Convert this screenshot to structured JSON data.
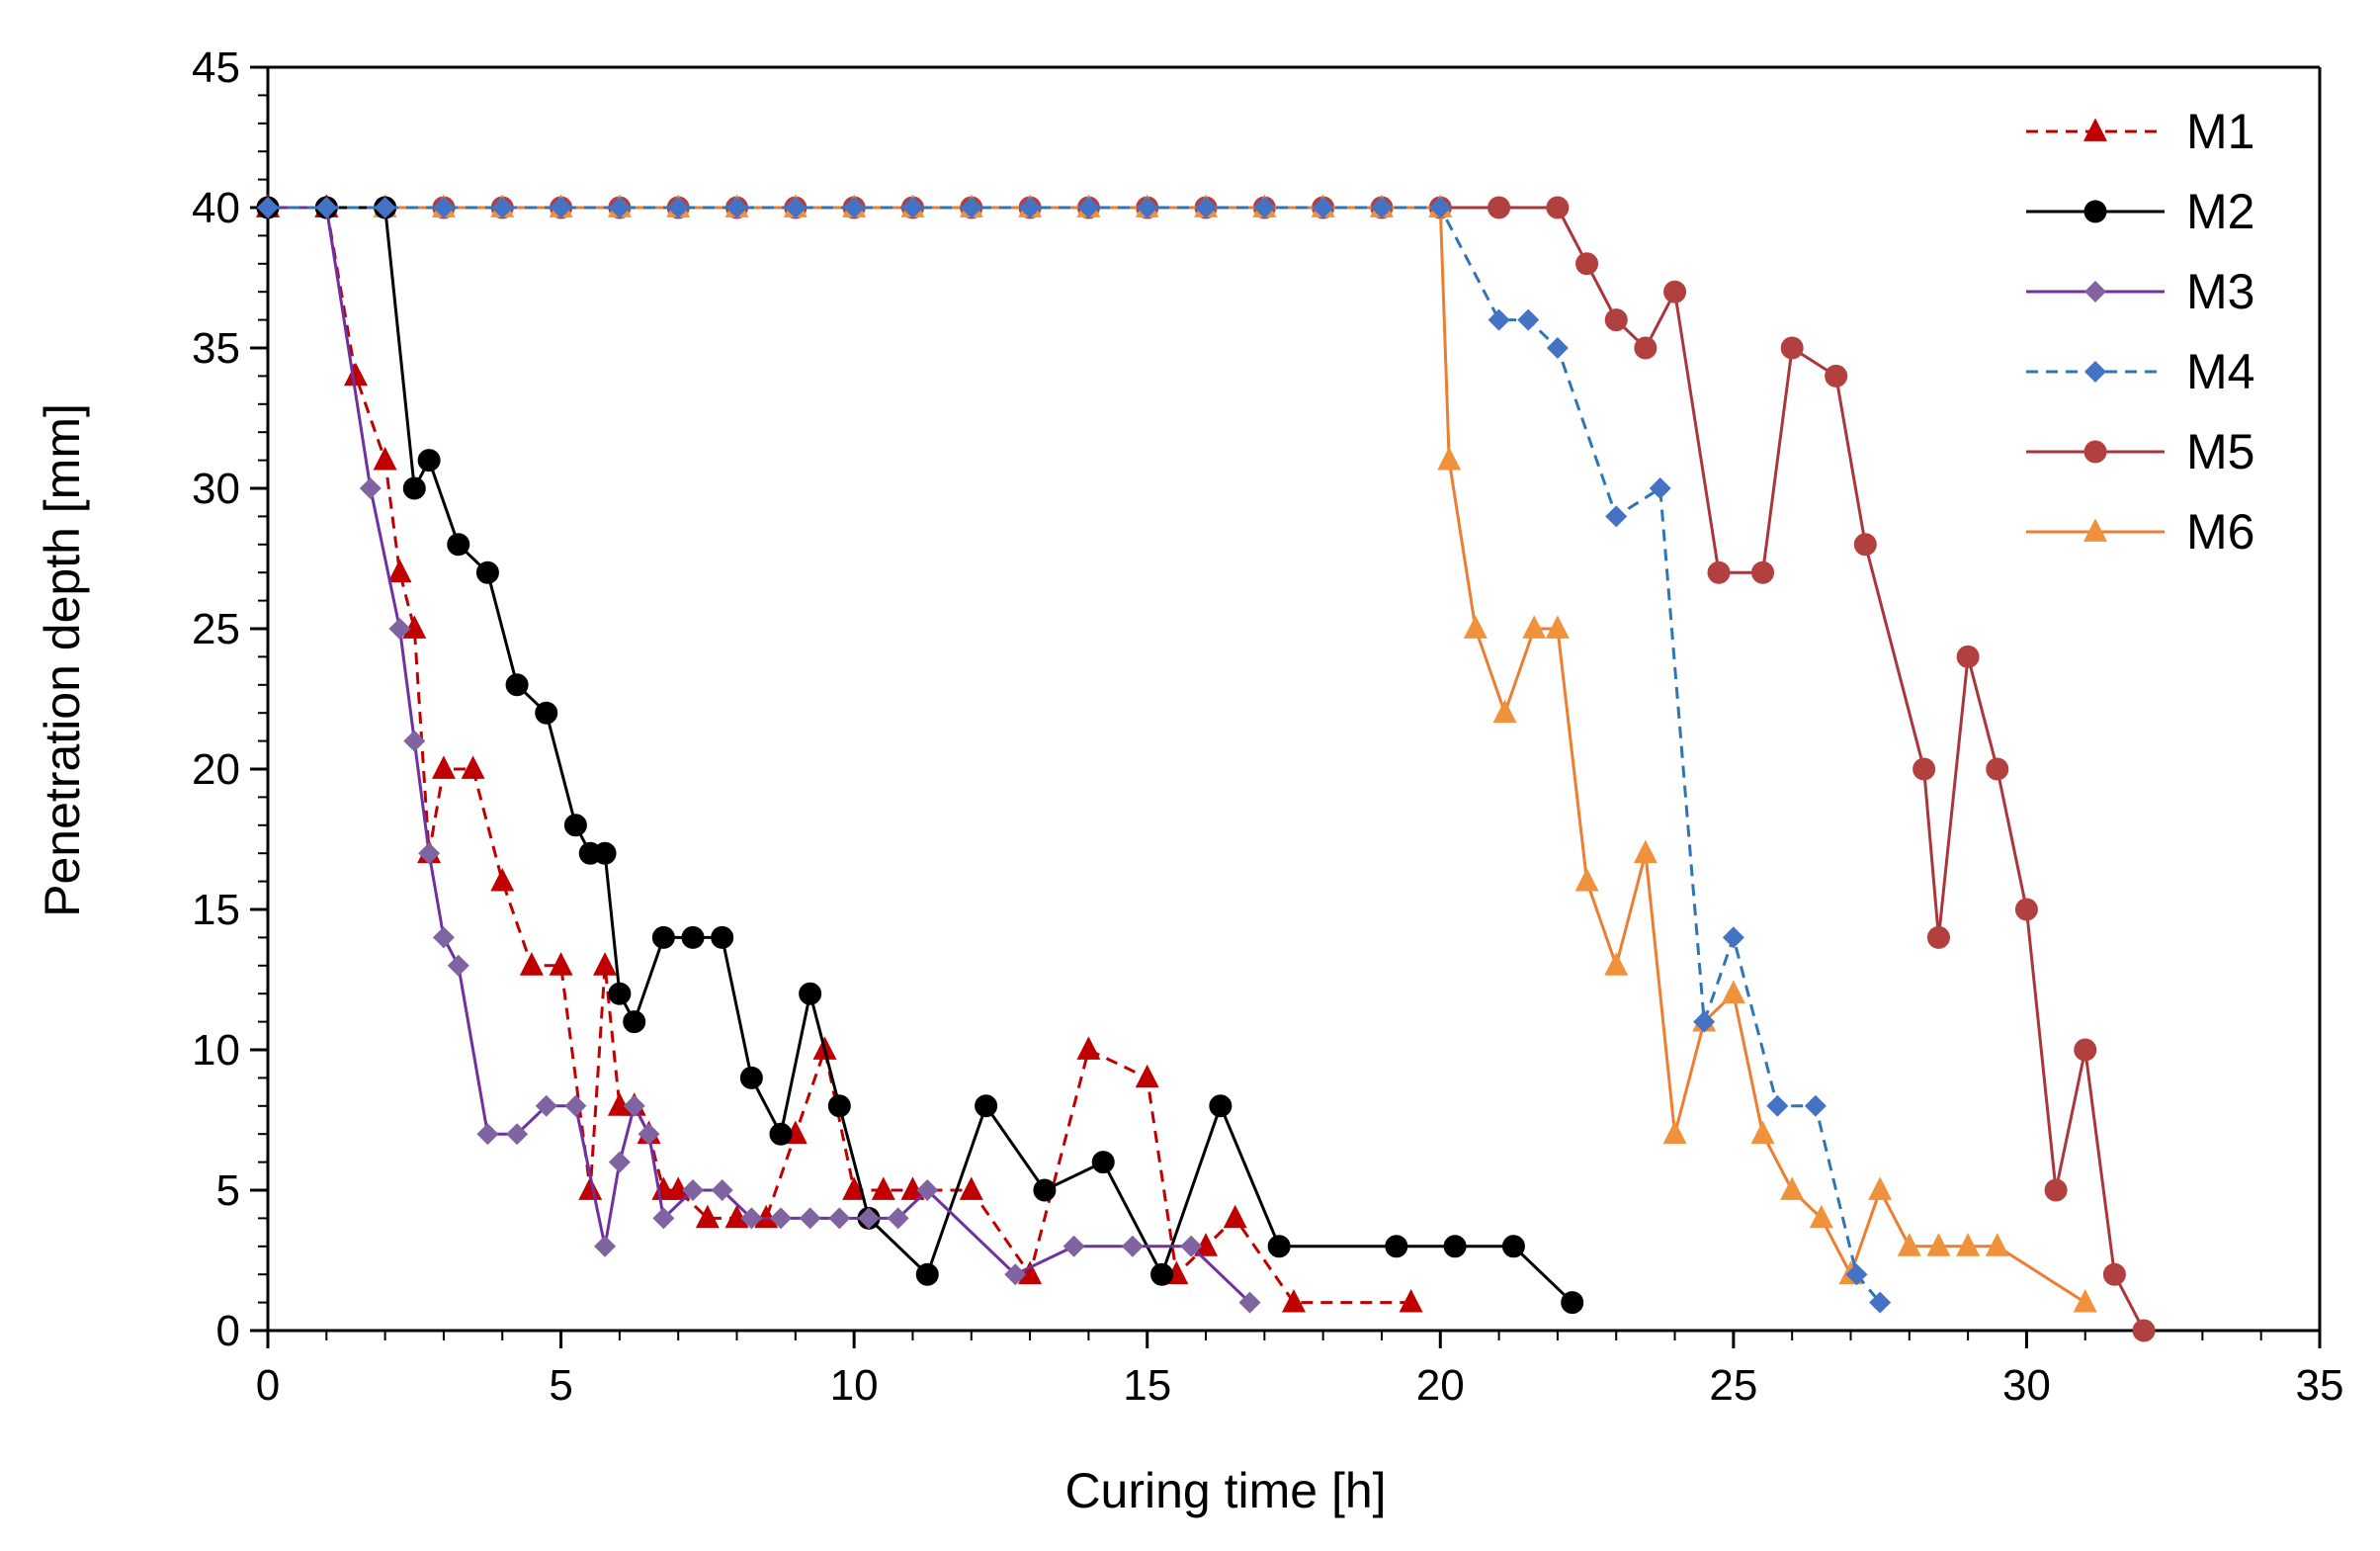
{
  "chart_data": {
    "type": "line",
    "title": "",
    "xlabel": "Curing time [h]",
    "ylabel": "Penetration depth [mm]",
    "xlim": [
      0,
      35
    ],
    "ylim": [
      0,
      45
    ],
    "xticks": [
      0,
      5,
      10,
      15,
      20,
      25,
      30,
      35
    ],
    "yticks": [
      0,
      5,
      10,
      15,
      20,
      25,
      30,
      35,
      40,
      45
    ],
    "grid": false,
    "legend_position": "top-right",
    "series": [
      {
        "name": "M1",
        "color": "#C00000",
        "dash": "dashed",
        "marker": "triangle",
        "x": [
          0,
          1,
          1.5,
          2,
          2.25,
          2.5,
          2.75,
          3,
          3.5,
          4,
          4.5,
          5,
          5.5,
          5.75,
          6,
          6.25,
          6.5,
          6.75,
          7,
          7.5,
          8,
          8.5,
          9,
          9.5,
          10,
          10.5,
          11,
          12,
          13,
          14,
          15,
          15.5,
          16,
          16.5,
          17.5,
          19.5
        ],
        "y": [
          40,
          40,
          34,
          31,
          27,
          25,
          17,
          20,
          20,
          16,
          13,
          13,
          5,
          13,
          8,
          8,
          7,
          5,
          5,
          4,
          4,
          4,
          7,
          10,
          5,
          5,
          5,
          5,
          2,
          10,
          9,
          2,
          3,
          4,
          1,
          1
        ]
      },
      {
        "name": "M2",
        "color": "#000000",
        "dash": "solid",
        "marker": "circle",
        "x": [
          0,
          1,
          2,
          2.5,
          2.75,
          3.25,
          3.75,
          4.25,
          4.75,
          5.25,
          5.5,
          5.75,
          6,
          6.25,
          6.75,
          7.25,
          7.75,
          8.25,
          8.75,
          9.25,
          9.75,
          10.25,
          11.25,
          12.25,
          13.25,
          14.25,
          15.25,
          16.25,
          17.25,
          19.25,
          20.25,
          21.25,
          22.25
        ],
        "y": [
          40,
          40,
          40,
          30,
          31,
          28,
          27,
          23,
          22,
          18,
          17,
          17,
          12,
          11,
          14,
          14,
          14,
          9,
          7,
          12,
          8,
          4,
          2,
          8,
          5,
          6,
          2,
          8,
          3,
          3,
          3,
          3,
          1
        ]
      },
      {
        "name": "M3",
        "color": "#7030A0",
        "marker_color": "#8064A2",
        "dash": "solid",
        "marker": "diamond",
        "x": [
          0,
          1,
          1.75,
          2.25,
          2.5,
          2.75,
          3,
          3.25,
          3.75,
          4.25,
          4.75,
          5.25,
          5.75,
          6,
          6.25,
          6.5,
          6.75,
          7.25,
          7.75,
          8.25,
          8.75,
          9.25,
          9.75,
          10.25,
          10.75,
          11.25,
          12.75,
          13.75,
          14.75,
          15.75,
          16.75
        ],
        "y": [
          40,
          40,
          30,
          25,
          21,
          17,
          14,
          13,
          7,
          7,
          8,
          8,
          3,
          6,
          8,
          7,
          4,
          5,
          5,
          4,
          4,
          4,
          4,
          4,
          4,
          5,
          2,
          3,
          3,
          3,
          1
        ]
      },
      {
        "name": "M4",
        "color": "#2E75B6",
        "marker_color": "#4472C4",
        "dash": "dashed",
        "marker": "diamond",
        "x": [
          0,
          1,
          2,
          3,
          4,
          5,
          6,
          7,
          8,
          9,
          10,
          11,
          12,
          13,
          14,
          15,
          16,
          17,
          18,
          19,
          20,
          21,
          21.5,
          22,
          23,
          23.75,
          24.5,
          25,
          25.75,
          26.4,
          27.1,
          27.5
        ],
        "y": [
          40,
          40,
          40,
          40,
          40,
          40,
          40,
          40,
          40,
          40,
          40,
          40,
          40,
          40,
          40,
          40,
          40,
          40,
          40,
          40,
          40,
          36,
          36,
          35,
          29,
          30,
          11,
          14,
          8,
          8,
          2,
          1
        ]
      },
      {
        "name": "M5",
        "color": "#A9363A",
        "marker_color": "#B2403F",
        "dash": "solid",
        "marker": "circle",
        "x": [
          0,
          1,
          2,
          3,
          4,
          5,
          6,
          7,
          8,
          9,
          10,
          11,
          12,
          13,
          14,
          15,
          16,
          17,
          18,
          19,
          20,
          21,
          22,
          22.5,
          23,
          23.5,
          24,
          24.75,
          25.5,
          26,
          26.75,
          27.25,
          28.25,
          28.5,
          29,
          29.5,
          30,
          30.5,
          31,
          31.5,
          32
        ],
        "y": [
          40,
          40,
          40,
          40,
          40,
          40,
          40,
          40,
          40,
          40,
          40,
          40,
          40,
          40,
          40,
          40,
          40,
          40,
          40,
          40,
          40,
          40,
          40,
          38,
          36,
          35,
          37,
          27,
          27,
          35,
          34,
          28,
          20,
          14,
          24,
          20,
          15,
          5,
          10,
          2,
          0
        ]
      },
      {
        "name": "M6",
        "color": "#ED7D31",
        "marker_color": "#F0923B",
        "dash": "solid",
        "marker": "triangle",
        "x": [
          0,
          1,
          2,
          3,
          4,
          5,
          6,
          7,
          8,
          9,
          10,
          11,
          12,
          13,
          14,
          15,
          16,
          17,
          18,
          19,
          20,
          20.15,
          20.6,
          21.1,
          21.6,
          22,
          22.5,
          23,
          23.5,
          24,
          24.5,
          25,
          25.5,
          26,
          26.5,
          27,
          27.5,
          28,
          28.5,
          29,
          29.5,
          31
        ],
        "y": [
          40,
          40,
          40,
          40,
          40,
          40,
          40,
          40,
          40,
          40,
          40,
          40,
          40,
          40,
          40,
          40,
          40,
          40,
          40,
          40,
          40,
          31,
          25,
          22,
          25,
          25,
          16,
          13,
          17,
          7,
          11,
          12,
          7,
          5,
          4,
          2,
          5,
          3,
          3,
          3,
          3,
          1
        ]
      }
    ]
  }
}
